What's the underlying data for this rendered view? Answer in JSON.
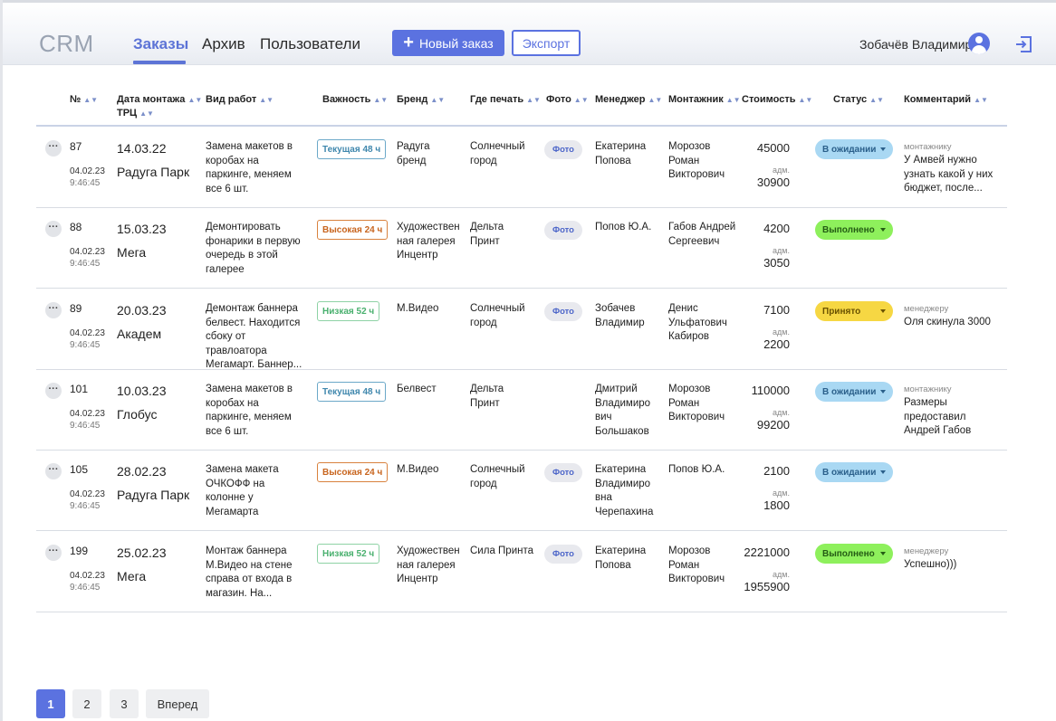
{
  "header": {
    "logo": "CRM",
    "nav": [
      "Заказы",
      "Архив",
      "Пользователи"
    ],
    "new_order": "Новый заказ",
    "export": "Экспорт",
    "user_name": "Зобачёв Владимир"
  },
  "columns": {
    "num": "№",
    "date_line1": "Дата монтажа",
    "date_line2": "ТРЦ",
    "work": "Вид работ",
    "importance": "Важность",
    "brand": "Бренд",
    "print": "Где печать",
    "photo": "Фото",
    "manager": "Менеджер",
    "installer": "Монтажник",
    "cost": "Стоимость",
    "status": "Статус",
    "comment": "Комментарий"
  },
  "rows": [
    {
      "num": "87",
      "created_date": "04.02.23",
      "created_time": "9:46:45",
      "mount_date": "14.03.22",
      "mall": "Радуга Парк",
      "work": "Замена макетов в коробах на паркинге, меняем все 6 шт.",
      "importance": "Текущая 48 ч",
      "imp_kind": "blue",
      "brand": "Радуга бренд",
      "print": "Солнечный город",
      "photo": "Фото",
      "manager": "Екатерина Попова",
      "installer": "Морозов Роман Викторович",
      "cost": "45000",
      "adm_label": "адм.",
      "adm_cost": "30900",
      "status": "В ожидании",
      "status_kind": "wait",
      "comment_label": "монтажнику",
      "comment": "У Амвей нужно узнать какой у них бюджет, после..."
    },
    {
      "num": "88",
      "created_date": "04.02.23",
      "created_time": "9:46:45",
      "mount_date": "15.03.23",
      "mall": "Мега",
      "work": "Демонтировать фонарики в первую очередь в этой галерее",
      "importance": "Высокая 24 ч",
      "imp_kind": "orange",
      "brand": "Художествен ная галерея Инцентр",
      "print": "Дельта Принт",
      "photo": "Фото",
      "manager": "Попов Ю.А.",
      "installer": "Габов Андрей Сергеевич",
      "cost": "4200",
      "adm_label": "адм.",
      "adm_cost": "3050",
      "status": "Выполнено",
      "status_kind": "done",
      "comment_label": "",
      "comment": ""
    },
    {
      "num": "89",
      "created_date": "04.02.23",
      "created_time": "9:46:45",
      "mount_date": "20.03.23",
      "mall": "Академ",
      "work": "Демонтаж баннера белвест. Находится сбоку от травлоатора Мегамарт. Баннер...",
      "importance": "Низкая 52 ч",
      "imp_kind": "green",
      "brand": "М.Видео",
      "print": "Солнечный город",
      "photo": "Фото",
      "manager": "Зобачев Владимир",
      "installer": "Денис Ульфатович Кабиров",
      "cost": "7100",
      "adm_label": "адм.",
      "adm_cost": "2200",
      "status": "Принято",
      "status_kind": "acc",
      "comment_label": "менеджеру",
      "comment": "Оля скинула 3000"
    },
    {
      "num": "101",
      "created_date": "04.02.23",
      "created_time": "9:46:45",
      "mount_date": "10.03.23",
      "mall": "Глобус",
      "work": "Замена макетов в коробах на паркинге, меняем все 6 шт.",
      "importance": "Текущая 48 ч",
      "imp_kind": "blue",
      "brand": "Белвест",
      "print": "Дельта Принт",
      "photo": "",
      "manager": "Дмитрий Владимиро вич Большаков",
      "installer": "Морозов Роман Викторович",
      "cost": "110000",
      "adm_label": "адм.",
      "adm_cost": "99200",
      "status": "В ожидании",
      "status_kind": "wait",
      "comment_label": "монтажнику",
      "comment": "Размеры предоставил Андрей Габов"
    },
    {
      "num": "105",
      "created_date": "04.02.23",
      "created_time": "9:46:45",
      "mount_date": "28.02.23",
      "mall": "Радуга Парк",
      "work": "Замена макета ОЧКОФФ на колонне у Мегамарта",
      "importance": "Высокая 24 ч",
      "imp_kind": "orange",
      "brand": "М.Видео",
      "print": "Солнечный город",
      "photo": "Фото",
      "manager": "Екатерина Владимиро вна Черепахина",
      "installer": "Попов Ю.А.",
      "cost": "2100",
      "adm_label": "адм.",
      "adm_cost": "1800",
      "status": "В ожидании",
      "status_kind": "wait",
      "comment_label": "",
      "comment": ""
    },
    {
      "num": "199",
      "created_date": "04.02.23",
      "created_time": "9:46:45",
      "mount_date": "25.02.23",
      "mall": "Мега",
      "work": "Монтаж баннера М.Видео на стене справа от входа в магазин. На...",
      "importance": "Низкая 52 ч",
      "imp_kind": "green",
      "brand": "Художествен ная галерея Инцентр",
      "print": "Сила Принта",
      "photo": "Фото",
      "manager": "Екатерина Попова",
      "installer": "Морозов Роман Викторович",
      "cost": "2221000",
      "adm_label": "адм.",
      "adm_cost": "1955900",
      "status": "Выполнено",
      "status_kind": "done",
      "comment_label": "менеджеру",
      "comment": "Успешно)))"
    }
  ],
  "pagination": {
    "pages": [
      "1",
      "2",
      "3"
    ],
    "active": "1",
    "next": "Вперед"
  },
  "colors": {
    "accent": "#5b72e0",
    "status_wait": "#a9d8f3",
    "status_done": "#8ef05c",
    "status_accepted": "#f6d743"
  },
  "icons": {
    "avatar": "user-circle-icon",
    "logout": "logout-icon",
    "sort": "sort-icon",
    "row_menu": "more-icon",
    "status_dropdown": "caret-down-icon"
  }
}
